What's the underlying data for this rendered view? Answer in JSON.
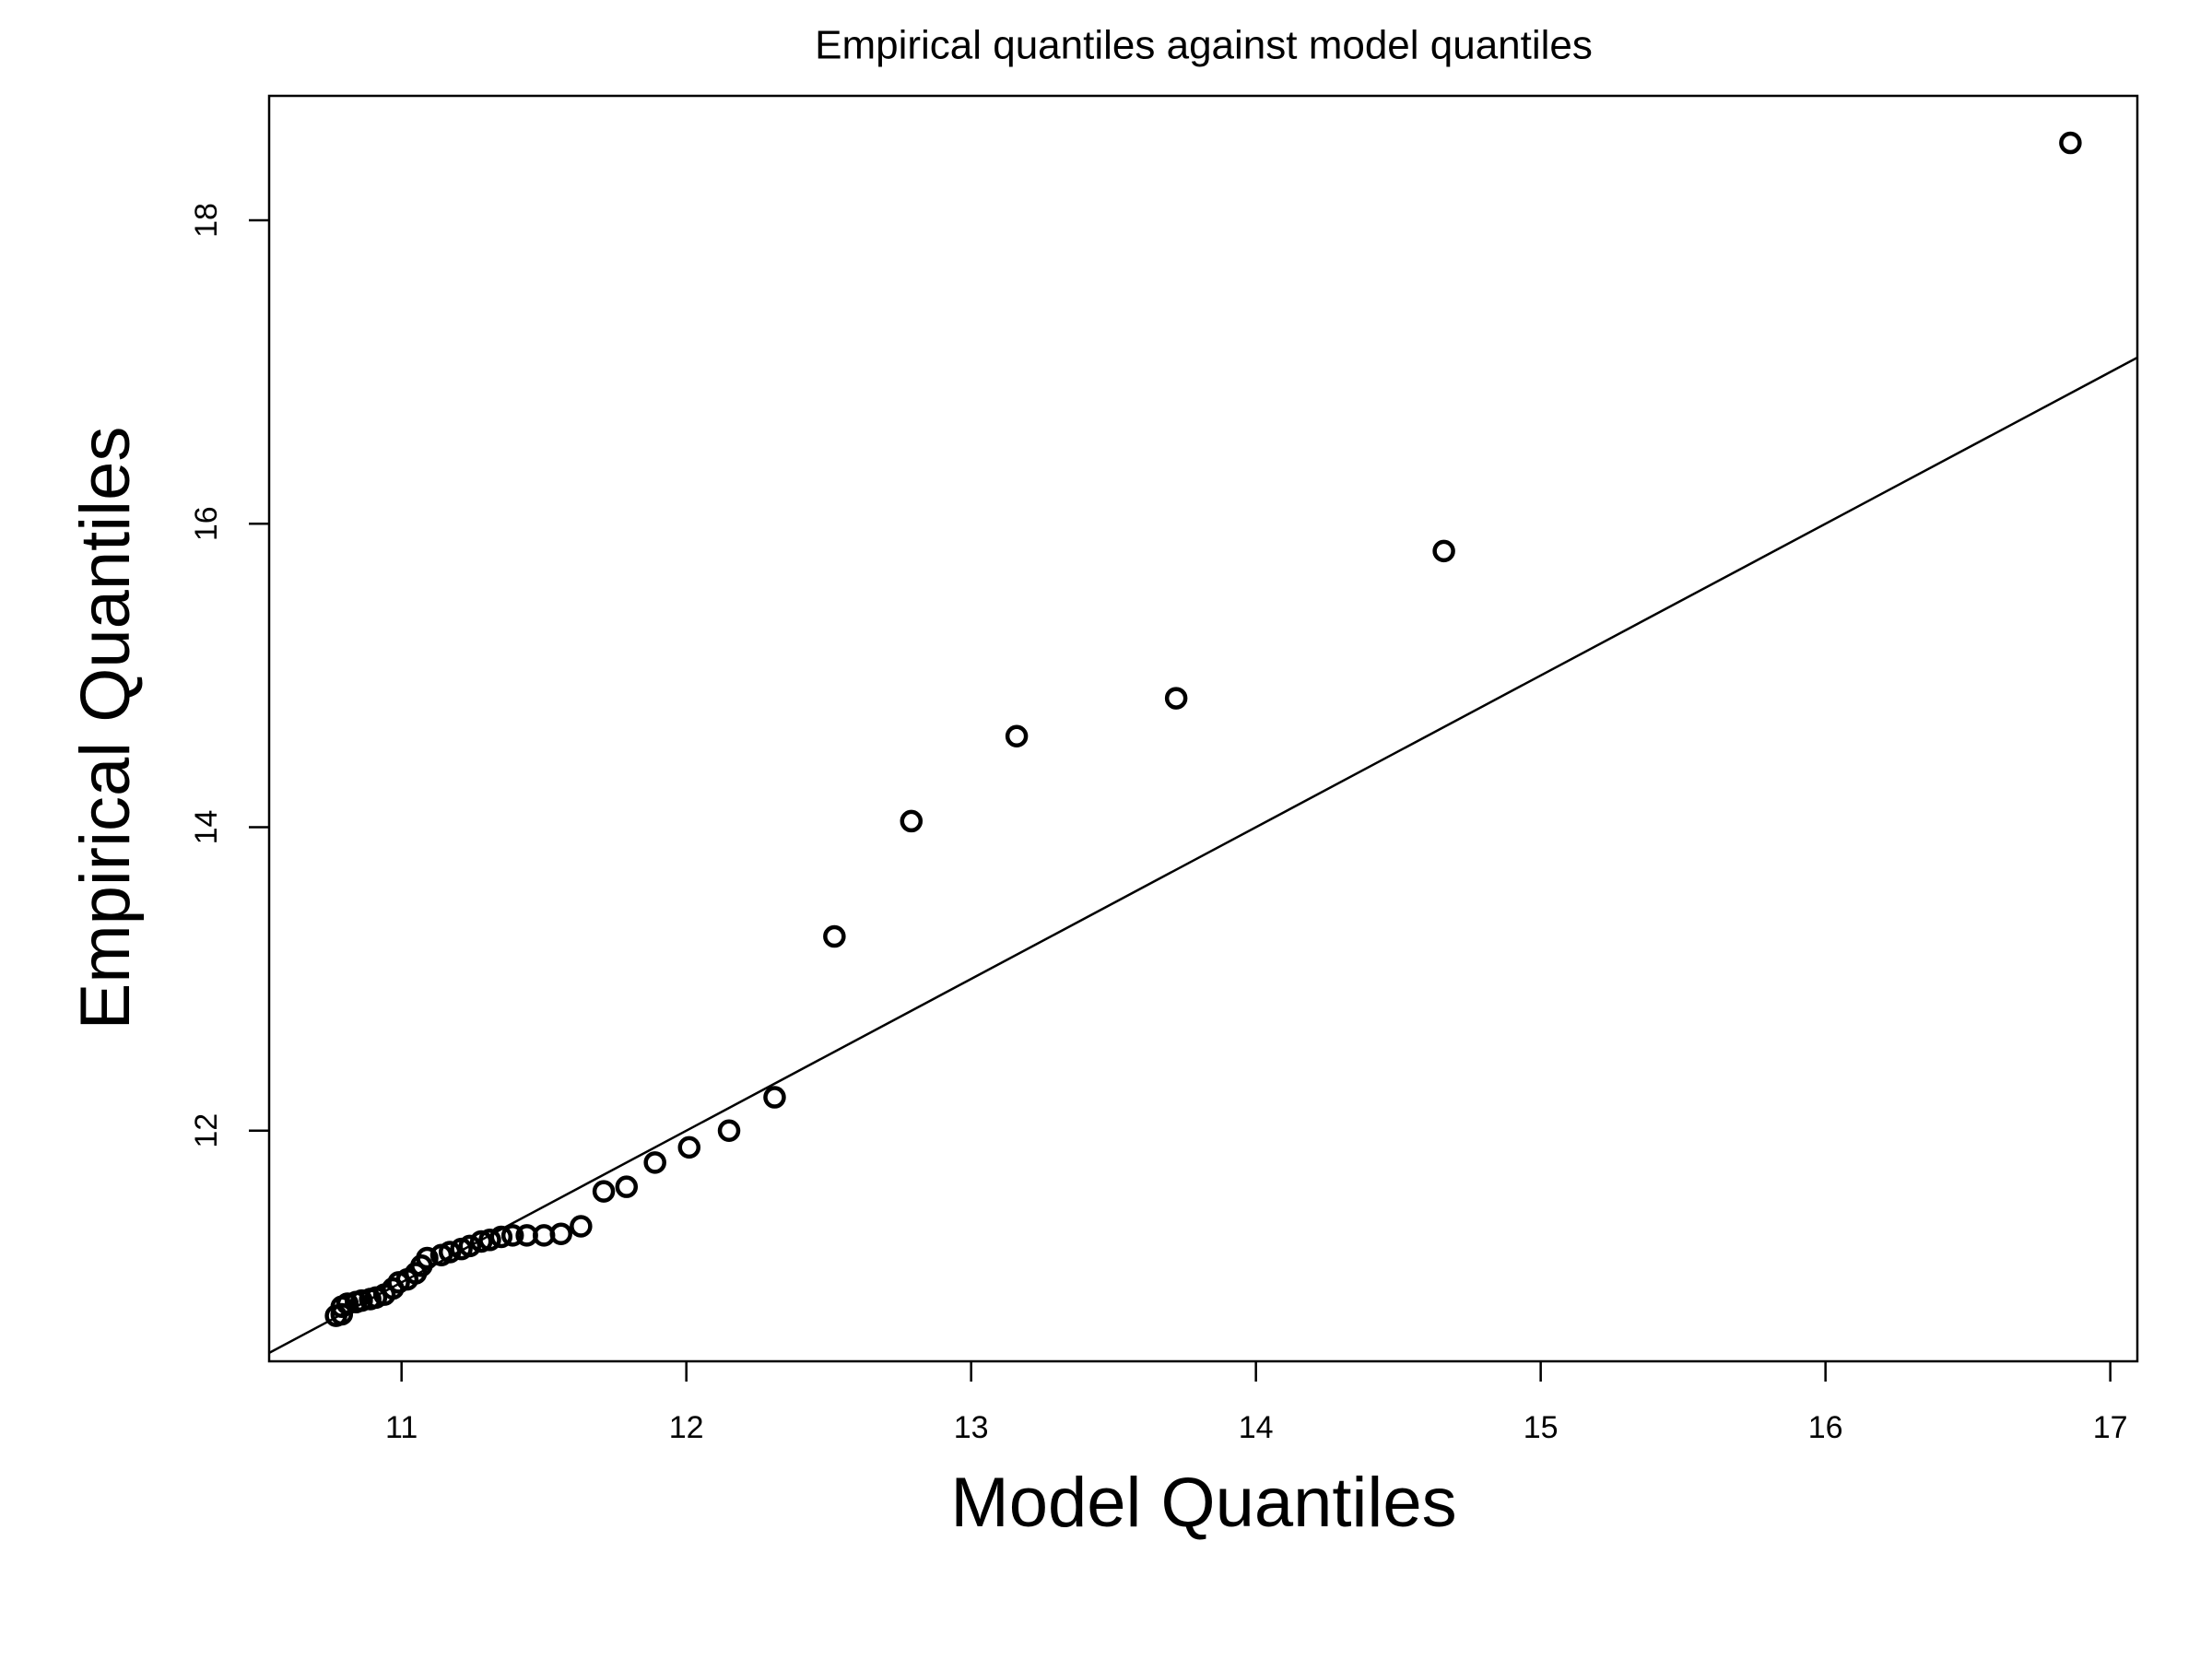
{
  "chart_data": {
    "type": "scatter",
    "title": "Empirical quantiles against model quantiles",
    "x_label": "Model Quantiles",
    "y_label": "Empirical Quantiles",
    "x": [
      16.86,
      14.66,
      13.72,
      13.16,
      12.79,
      12.52,
      12.31,
      12.15,
      12.01,
      11.89,
      11.79,
      11.71,
      11.63,
      11.56,
      11.5,
      11.44,
      11.39,
      11.35,
      11.31,
      11.28,
      11.24,
      11.21,
      11.17,
      11.14,
      11.09,
      11.07,
      11.05,
      11.02,
      10.99,
      10.97,
      10.94,
      10.91,
      10.89,
      10.86,
      10.84,
      10.81,
      10.79,
      10.79,
      10.77
    ],
    "values": [
      18.51,
      15.82,
      14.85,
      14.6,
      14.04,
      13.28,
      12.22,
      12.0,
      11.89,
      11.79,
      11.63,
      11.6,
      11.37,
      11.32,
      11.31,
      11.31,
      11.31,
      11.3,
      11.28,
      11.27,
      11.24,
      11.22,
      11.2,
      11.18,
      11.16,
      11.11,
      11.06,
      11.02,
      11.0,
      10.96,
      10.92,
      10.9,
      10.89,
      10.88,
      10.87,
      10.86,
      10.84,
      10.79,
      10.78
    ],
    "color": "#000000",
    "reference_line": {
      "intercept": 0,
      "slope": 1
    },
    "xlim": [
      10.535,
      17.095
    ],
    "xticks": [
      11,
      12,
      13,
      14,
      15,
      16,
      17
    ],
    "ylim": [
      10.48,
      18.82
    ],
    "yticks": [
      12,
      14,
      16,
      18
    ]
  }
}
